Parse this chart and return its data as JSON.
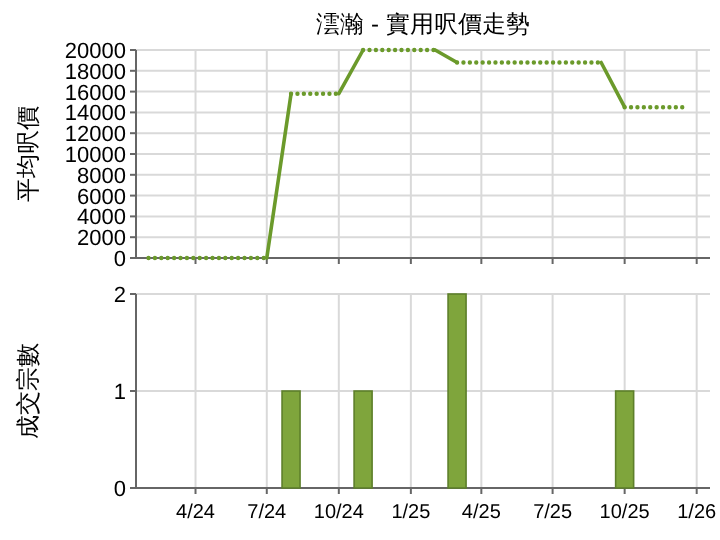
{
  "chart_data": [
    {
      "type": "line",
      "title": "澐瀚 - 實用呎價走勢",
      "ylabel": "平均呎價",
      "xlim": [
        "2024-01-16",
        "2026-01-18"
      ],
      "ylim": [
        0,
        20000
      ],
      "yticks": [
        0,
        2000,
        4000,
        6000,
        8000,
        10000,
        12000,
        14000,
        16000,
        18000,
        20000
      ],
      "xticks": [
        {
          "value": "2024-04",
          "label": null
        },
        {
          "value": "2024-07",
          "label": null
        },
        {
          "value": "2024-10",
          "label": null
        },
        {
          "value": "2025-01",
          "label": null
        },
        {
          "value": "2025-04",
          "label": null
        },
        {
          "value": "2025-07",
          "label": null
        },
        {
          "value": "2025-10",
          "label": null
        },
        {
          "value": "2026-01",
          "label": null
        }
      ],
      "tick_labels": "y",
      "grid": true,
      "series": [
        {
          "color": "#6b9a2b",
          "line_style": "dotted",
          "x": [
            "2024-02",
            "2024-07"
          ],
          "values": [
            0,
            0
          ]
        },
        {
          "color": "#6b9a2b",
          "line_style": "solid",
          "x": [
            "2024-07",
            "2024-08"
          ],
          "values": [
            0,
            15800
          ]
        },
        {
          "color": "#6b9a2b",
          "line_style": "dotted",
          "x": [
            "2024-08",
            "2024-10"
          ],
          "values": [
            15800,
            15800
          ]
        },
        {
          "color": "#6b9a2b",
          "line_style": "solid",
          "x": [
            "2024-10",
            "2024-11"
          ],
          "values": [
            15800,
            20000
          ]
        },
        {
          "color": "#6b9a2b",
          "line_style": "dotted",
          "x": [
            "2024-11",
            "2025-02"
          ],
          "values": [
            20000,
            20000
          ]
        },
        {
          "color": "#6b9a2b",
          "line_style": "solid",
          "x": [
            "2025-02",
            "2025-03"
          ],
          "values": [
            20000,
            18800
          ]
        },
        {
          "color": "#6b9a2b",
          "line_style": "dotted",
          "x": [
            "2025-03",
            "2025-09"
          ],
          "values": [
            18800,
            18800
          ]
        },
        {
          "color": "#6b9a2b",
          "line_style": "solid",
          "x": [
            "2025-09",
            "2025-10"
          ],
          "values": [
            18800,
            14500
          ]
        },
        {
          "color": "#6b9a2b",
          "line_style": "dotted",
          "x": [
            "2025-10",
            "2025-12-20"
          ],
          "values": [
            14500,
            14500
          ]
        }
      ]
    },
    {
      "type": "bar",
      "ylabel": "成交宗數",
      "xlim": [
        "2024-01-16",
        "2026-01-18"
      ],
      "ylim": [
        0,
        2
      ],
      "yticks": [
        0,
        1,
        2
      ],
      "xticks": [
        {
          "value": "2024-04",
          "label": "4/24"
        },
        {
          "value": "2024-07",
          "label": "7/24"
        },
        {
          "value": "2024-10",
          "label": "10/24"
        },
        {
          "value": "2025-01",
          "label": "1/25"
        },
        {
          "value": "2025-04",
          "label": "4/25"
        },
        {
          "value": "2025-07",
          "label": "7/25"
        },
        {
          "value": "2025-10",
          "label": "10/25"
        },
        {
          "value": "2026-01",
          "label": "1/26"
        }
      ],
      "grid": true,
      "series": [
        {
          "color": "#7fa53c",
          "x": [
            "2024-08",
            "2024-11",
            "2025-03",
            "2025-10"
          ],
          "values": [
            1,
            1,
            2,
            1
          ]
        }
      ]
    }
  ]
}
